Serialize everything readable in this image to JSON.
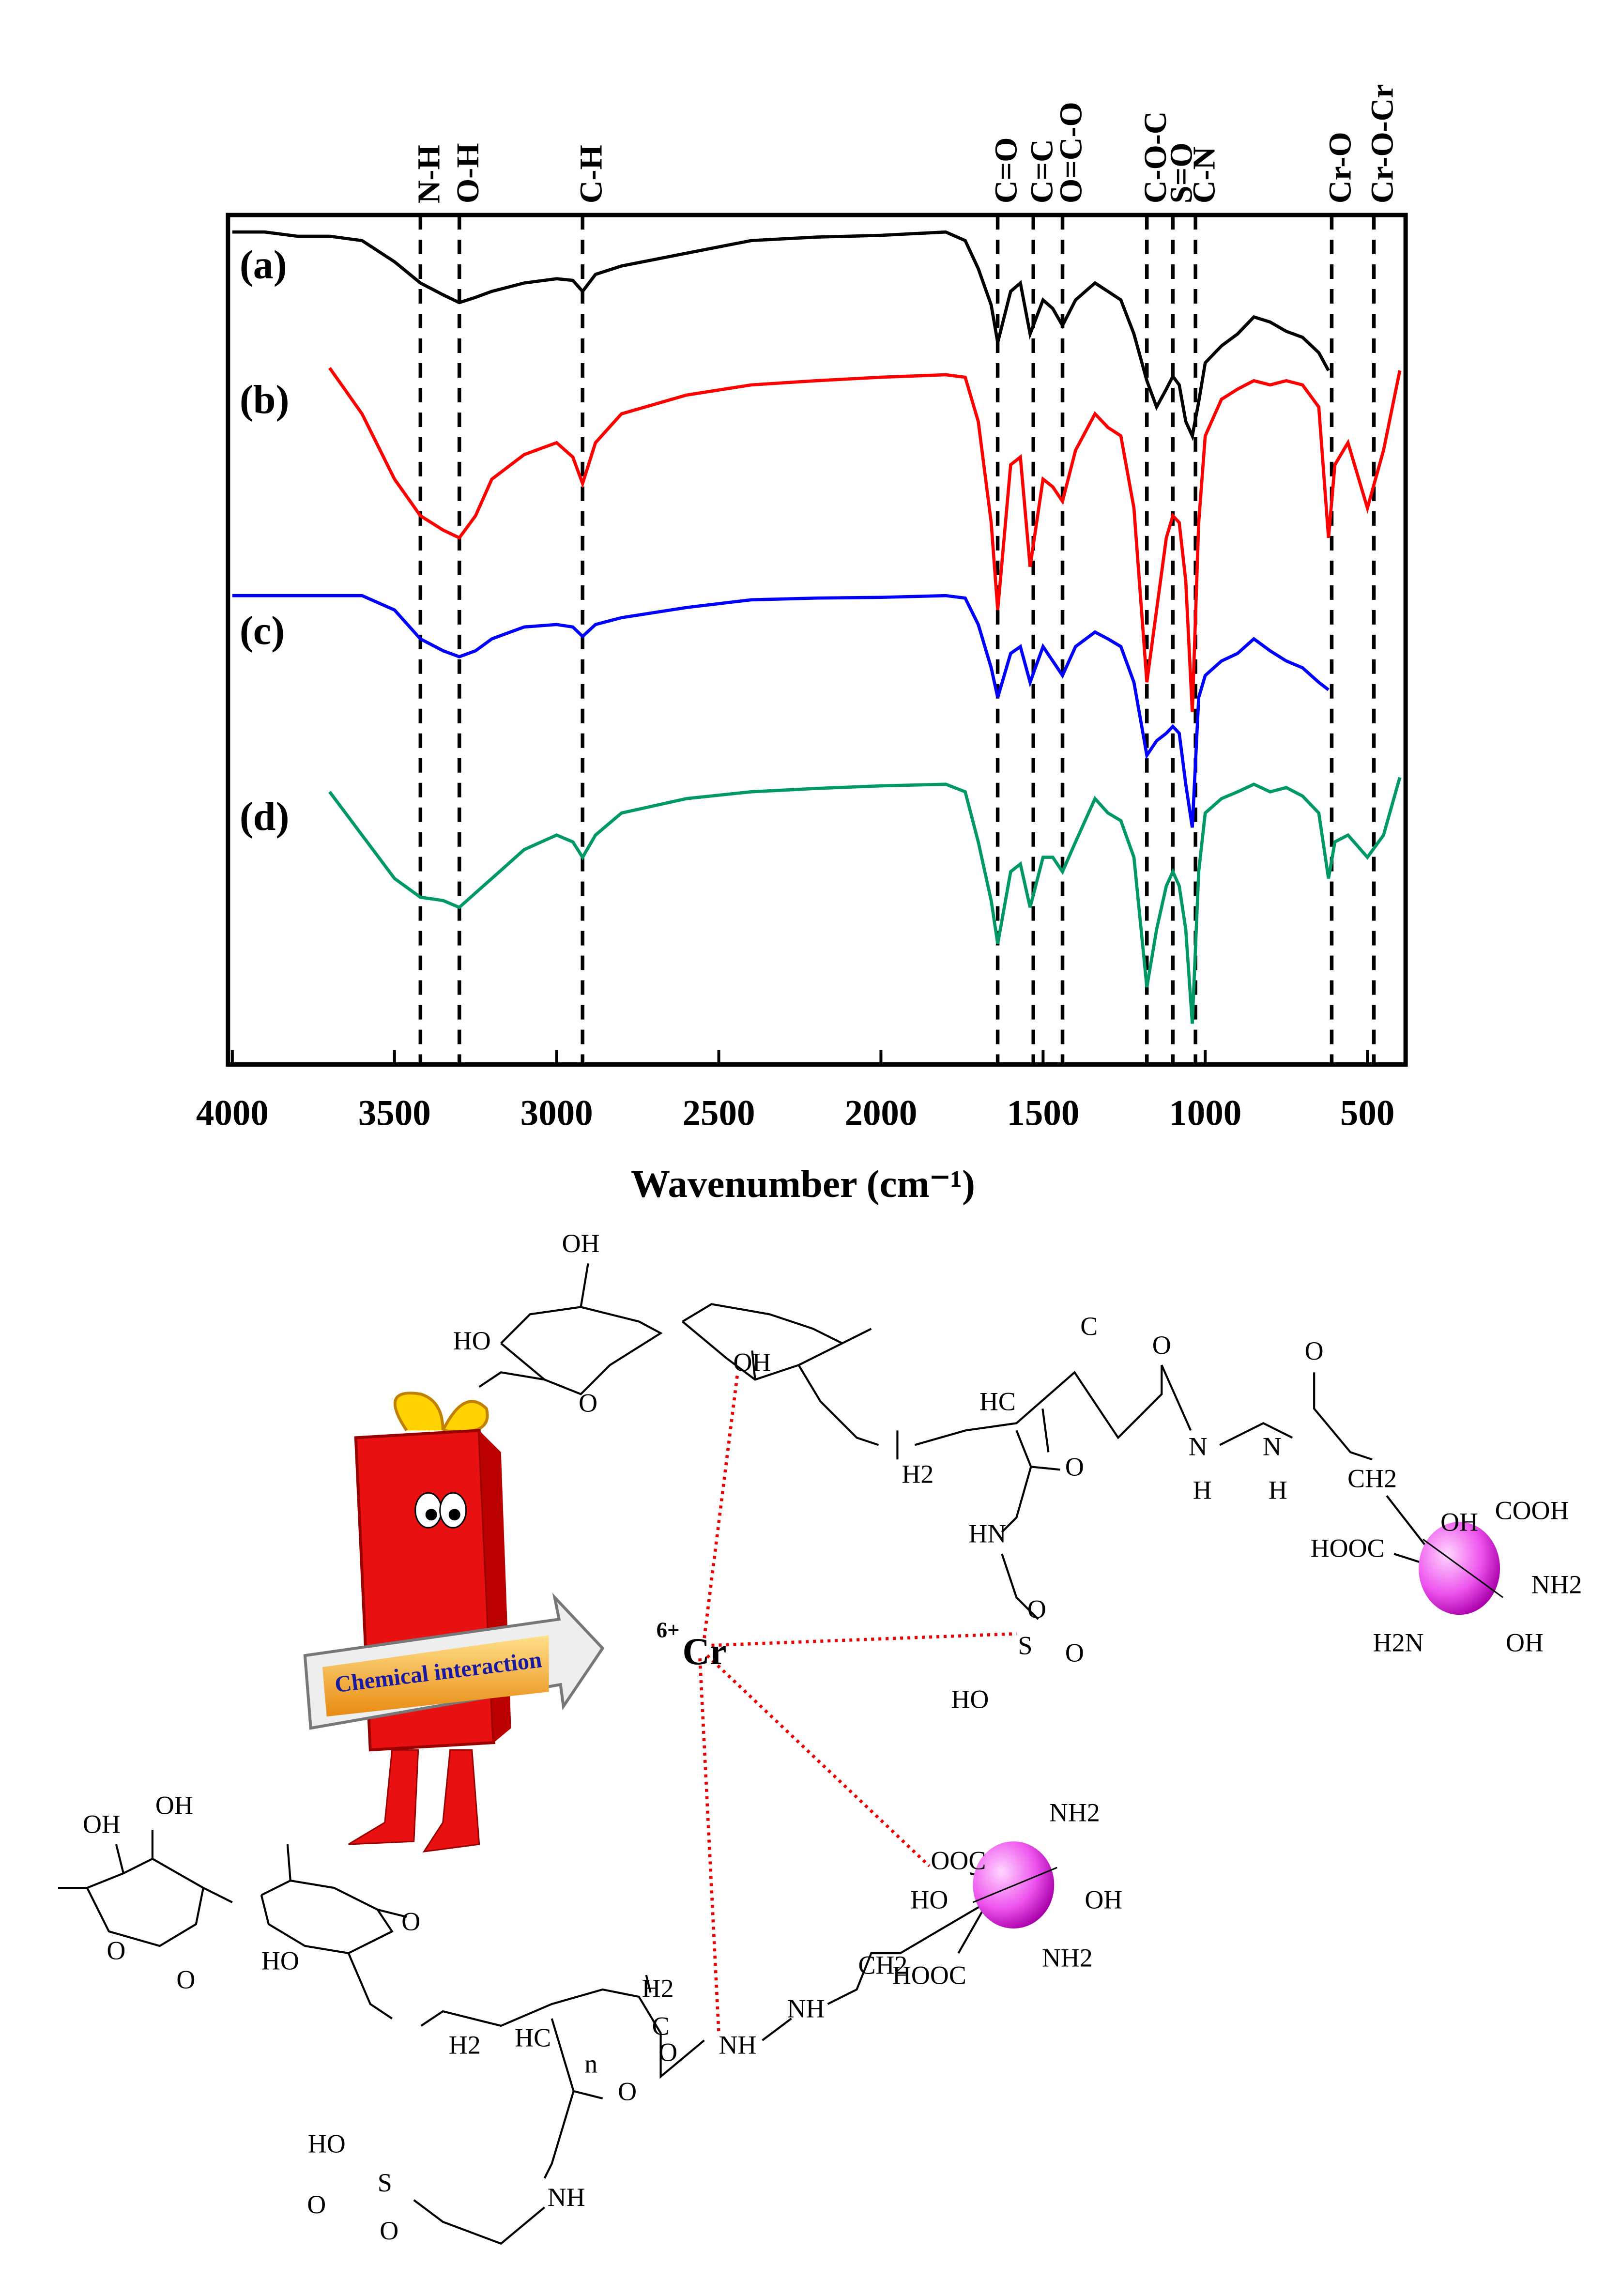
{
  "chart_data": {
    "type": "line",
    "xlabel": "Wavenumber (cm⁻¹)",
    "xlim": [
      4000,
      400
    ],
    "ylim": [
      0,
      100
    ],
    "xticks": [
      4000,
      3500,
      3000,
      2500,
      2000,
      1500,
      1000,
      500
    ],
    "x": [
      4000,
      3900,
      3800,
      3700,
      3600,
      3500,
      3420,
      3350,
      3300,
      3250,
      3200,
      3100,
      3000,
      2950,
      2920,
      2880,
      2800,
      2600,
      2400,
      2200,
      2000,
      1800,
      1740,
      1700,
      1660,
      1640,
      1600,
      1570,
      1540,
      1500,
      1470,
      1440,
      1400,
      1340,
      1300,
      1260,
      1220,
      1180,
      1150,
      1120,
      1100,
      1080,
      1060,
      1040,
      1020,
      1000,
      950,
      900,
      850,
      800,
      750,
      700,
      650,
      620,
      600,
      560,
      500,
      450,
      400
    ],
    "series": [
      {
        "name": "(a)",
        "color": "#000000",
        "values": [
          98,
          98,
          97.5,
          97.5,
          97,
          94.5,
          92,
          90.6,
          89.7,
          90.3,
          91,
          92,
          92.5,
          92.3,
          91,
          93,
          94,
          95.5,
          97,
          97.4,
          97.6,
          98,
          97,
          93.7,
          89.4,
          85,
          91,
          92,
          86,
          90,
          89,
          87,
          90,
          92,
          91,
          90,
          86,
          80.5,
          77.4,
          79.5,
          81,
          80,
          75.7,
          74,
          78,
          82.6,
          84.6,
          86,
          88,
          87.4,
          86.3,
          85.6,
          83.8,
          81.7,
          null,
          null,
          null,
          null,
          null
        ]
      },
      {
        "name": "(b)",
        "color": "#ff0000",
        "values": [
          null,
          null,
          null,
          82,
          76.6,
          68.9,
          64.6,
          62.9,
          62,
          64.6,
          68.9,
          71.8,
          73.2,
          71.5,
          68.4,
          73.2,
          76.6,
          78.8,
          80,
          80.5,
          80.9,
          81.2,
          80.9,
          75.7,
          63.8,
          53.5,
          70.6,
          71.5,
          58.6,
          68.9,
          68,
          66.3,
          72.3,
          76.6,
          75,
          74,
          65.5,
          45,
          53.5,
          62,
          64.6,
          63.8,
          56.9,
          41.5,
          63.8,
          74,
          78.3,
          79.5,
          80.5,
          80,
          80.5,
          80,
          77.4,
          62,
          70.6,
          73.2,
          65.5,
          72.3,
          81.7
        ]
      },
      {
        "name": "(c)",
        "color": "#0000ff",
        "values": [
          55.2,
          55.2,
          55.2,
          55.2,
          55.2,
          53.5,
          50.1,
          48.7,
          48,
          48.7,
          50.1,
          51.5,
          51.8,
          51.5,
          50.4,
          51.8,
          52.6,
          53.8,
          54.7,
          54.9,
          55,
          55.2,
          54.9,
          51.8,
          46.7,
          43.2,
          48.4,
          49.2,
          45,
          49.2,
          47.5,
          45.8,
          49.2,
          50.9,
          50.1,
          49.2,
          45,
          36.4,
          38.1,
          39,
          39.8,
          39,
          33,
          27.9,
          43.2,
          45.8,
          47.5,
          48.4,
          50.1,
          48.7,
          47.5,
          46.7,
          45,
          44.1,
          null,
          null,
          null,
          null,
          null
        ]
      },
      {
        "name": "(d)",
        "color": "#009966",
        "values": [
          null,
          null,
          null,
          32.1,
          27,
          21.9,
          19.7,
          19.3,
          18.5,
          20.2,
          21.9,
          25.3,
          27,
          26.2,
          24.4,
          27,
          29.6,
          31.3,
          32.1,
          32.5,
          32.8,
          33,
          32.1,
          26.2,
          19.3,
          14.2,
          22.7,
          23.6,
          18.5,
          24.4,
          24.4,
          22.7,
          26.2,
          31.3,
          29.6,
          28.7,
          24.4,
          9.1,
          15.9,
          21,
          22.7,
          21,
          15.9,
          4.8,
          22.7,
          29.6,
          31.3,
          32.1,
          33,
          32.1,
          32.6,
          31.6,
          29.6,
          21.9,
          26.2,
          27,
          24.4,
          27,
          33.8
        ]
      }
    ],
    "peaks": [
      {
        "label": "N-H",
        "x": 3420
      },
      {
        "label": "O-H",
        "x": 3300
      },
      {
        "label": "C-H",
        "x": 2920
      },
      {
        "label": "C=O",
        "x": 1640
      },
      {
        "label": "C=C",
        "x": 1530
      },
      {
        "label": "O=C-O",
        "x": 1440
      },
      {
        "label": "C-O-C",
        "x": 1180
      },
      {
        "label": "S=O",
        "x": 1100
      },
      {
        "label": "C-N",
        "x": 1030
      },
      {
        "label": "Cr-O",
        "x": 610
      },
      {
        "label": "Cr-O-Cr",
        "x": 480
      }
    ]
  },
  "scheme": {
    "charge": "6+",
    "ion": "Cr",
    "banner": "Chemical interaction",
    "labels": [
      "OH",
      "HO",
      "O",
      "OH",
      "H2",
      "HC",
      "C",
      "O",
      "O",
      "N",
      "H",
      "N",
      "H",
      "O",
      "CH2",
      "OH",
      "COOH",
      "HOOC",
      "NH2",
      "H2N",
      "OH",
      "HN",
      "S",
      "O",
      "O",
      "HO",
      "OH",
      "OH",
      "O",
      "O",
      "HO",
      "O",
      "H2",
      "HC",
      "n",
      "H2",
      "C",
      "NH",
      "O",
      "NH",
      "CH2",
      "OOC",
      "NH2",
      "HO",
      "OH",
      "HOOC",
      "NH2",
      "HO",
      "S",
      "O",
      "O",
      "NH",
      "O"
    ]
  }
}
